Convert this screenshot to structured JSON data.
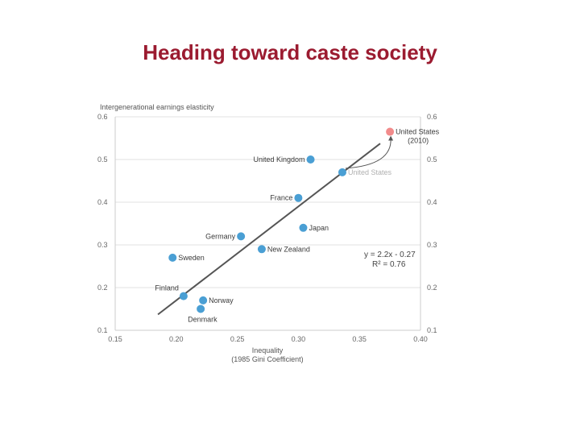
{
  "page": {
    "title": "Heading toward caste society"
  },
  "chart_data": {
    "type": "scatter",
    "title": "",
    "ylabel": "Intergenerational earnings elasticity",
    "xlabel_lines": [
      "Inequality",
      "(1985 Gini Coefficient)"
    ],
    "xlim": [
      0.15,
      0.4
    ],
    "ylim": [
      0.1,
      0.6
    ],
    "x_ticks": [
      "0.15",
      "0.20",
      "0.25",
      "0.30",
      "0.35",
      "0.40"
    ],
    "y_ticks": [
      "0.1",
      "0.2",
      "0.3",
      "0.4",
      "0.5",
      "0.6"
    ],
    "y_tick_values": [
      0.1,
      0.2,
      0.3,
      0.4,
      0.5,
      0.6
    ],
    "x_tick_values": [
      0.15,
      0.2,
      0.25,
      0.3,
      0.35,
      0.4
    ],
    "points": [
      {
        "name": "Denmark",
        "x": 0.22,
        "y": 0.15,
        "label": "Denmark",
        "anchor": "below"
      },
      {
        "name": "Norway",
        "x": 0.222,
        "y": 0.17,
        "label": "Norway",
        "anchor": "right"
      },
      {
        "name": "Finland",
        "x": 0.206,
        "y": 0.18,
        "label": "Finland",
        "anchor": "left-up"
      },
      {
        "name": "Sweden",
        "x": 0.197,
        "y": 0.27,
        "label": "Sweden",
        "anchor": "right"
      },
      {
        "name": "Germany",
        "x": 0.253,
        "y": 0.32,
        "label": "Germany",
        "anchor": "left"
      },
      {
        "name": "New Zealand",
        "x": 0.27,
        "y": 0.29,
        "label": "New Zealand",
        "anchor": "right"
      },
      {
        "name": "Japan",
        "x": 0.304,
        "y": 0.34,
        "label": "Japan",
        "anchor": "right"
      },
      {
        "name": "France",
        "x": 0.3,
        "y": 0.41,
        "label": "France",
        "anchor": "left"
      },
      {
        "name": "United Kingdom",
        "x": 0.31,
        "y": 0.5,
        "label": "United Kingdom",
        "anchor": "left"
      },
      {
        "name": "United States",
        "x": 0.336,
        "y": 0.47,
        "label": "United States",
        "anchor": "right-faded"
      }
    ],
    "highlight_point": {
      "name": "United States (2010)",
      "x": 0.375,
      "y": 0.565,
      "label_lines": [
        "United States",
        "(2010)"
      ],
      "color": "#f28b8b"
    },
    "trendline": {
      "x_start": 0.185,
      "x_end": 0.367,
      "equation": "y = 2.2x - 0.27",
      "r_squared": "R² = 0.76"
    },
    "colors": {
      "point": "#4a9fd4",
      "highlight": "#f28b8b",
      "trendline": "#555555",
      "grid": "#e2e2e2",
      "title": "#9b1b30"
    }
  }
}
